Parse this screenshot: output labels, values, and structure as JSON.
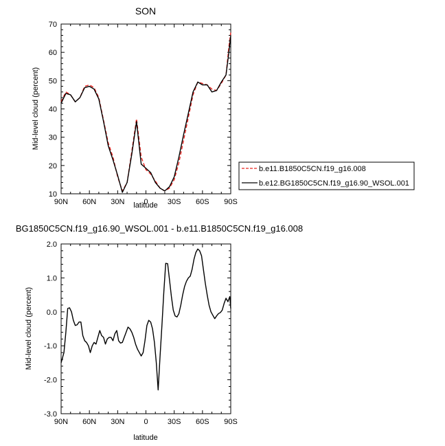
{
  "chart_data": [
    {
      "type": "line",
      "title": "SON",
      "xlabel": "latitude",
      "ylabel": "Mid-level cloud (percent)",
      "xlim": [
        90,
        -90
      ],
      "ylim": [
        10,
        70
      ],
      "x_ticks": [
        90,
        60,
        30,
        0,
        -30,
        -60,
        -90
      ],
      "x_tick_labels": [
        "90N",
        "60N",
        "30N",
        "0",
        "30S",
        "60S",
        "90S"
      ],
      "y_ticks": [
        10,
        20,
        30,
        40,
        50,
        60,
        70
      ],
      "y_tick_labels": [
        "10",
        "20",
        "30",
        "40",
        "50",
        "60",
        "70"
      ],
      "legend_position": "right",
      "x": [
        90,
        85,
        80,
        75,
        70,
        65,
        60,
        55,
        50,
        45,
        40,
        35,
        30,
        25,
        20,
        15,
        10,
        5,
        0,
        -5,
        -10,
        -15,
        -20,
        -25,
        -30,
        -35,
        -40,
        -45,
        -50,
        -55,
        -60,
        -65,
        -70,
        -75,
        -80,
        -85,
        -88,
        -90
      ],
      "series": [
        {
          "name": "b.e11.B1850C5CN.f19_g16.008",
          "color": "#e8231f",
          "dash": "dashed",
          "values": [
            42.5,
            46,
            45,
            42.5,
            44,
            48,
            48.5,
            47.5,
            44,
            36,
            28,
            23,
            16,
            11,
            14,
            25,
            36.5,
            23,
            18.5,
            17,
            14.5,
            12,
            11,
            12,
            15,
            21,
            29,
            37,
            45,
            49.5,
            49,
            48.5,
            47,
            46.5,
            49,
            52,
            62,
            67
          ]
        },
        {
          "name": "b.e12.BG1850C5CN.f19_g16.90_WSOL.001",
          "color": "#000000",
          "dash": "solid",
          "values": [
            42,
            45.5,
            45,
            42.5,
            44,
            47.5,
            48,
            47,
            43.5,
            35.5,
            27,
            22,
            16.5,
            10.5,
            14,
            24,
            35.5,
            20.5,
            19,
            17.5,
            14,
            12,
            11,
            12.5,
            16,
            23,
            31,
            38.5,
            46,
            49.5,
            48.5,
            48.5,
            46,
            46.5,
            49.5,
            52,
            60,
            66
          ]
        }
      ]
    },
    {
      "type": "line",
      "title": "BG1850C5CN.f19_g16.90_WSOL.001 - b.e11.B1850C5CN.f19_g16.008",
      "xlabel": "latitude",
      "ylabel": "Mid-level cloud (percent)",
      "xlim": [
        90,
        -90
      ],
      "ylim": [
        -3.0,
        2.0
      ],
      "x_ticks": [
        90,
        60,
        30,
        0,
        -30,
        -60,
        -90
      ],
      "x_tick_labels": [
        "90N",
        "60N",
        "30N",
        "0",
        "30S",
        "60S",
        "90S"
      ],
      "y_ticks": [
        -3.0,
        -2.0,
        -1.0,
        0.0,
        1.0,
        2.0
      ],
      "y_tick_labels": [
        "-3.0",
        "-2.0",
        "-1.0",
        "0.0",
        "1.0",
        "2.0"
      ],
      "x": [
        90,
        87,
        85,
        83,
        81,
        79,
        77,
        75,
        73,
        71,
        69,
        67,
        65,
        63,
        61,
        59,
        57,
        55,
        53,
        51,
        49,
        47,
        45,
        43,
        41,
        39,
        37,
        35,
        33,
        31,
        29,
        27,
        25,
        23,
        21,
        19,
        17,
        15,
        13,
        11,
        9,
        7,
        5,
        3,
        1,
        -1,
        -3,
        -5,
        -7,
        -9,
        -11,
        -13,
        -15,
        -17,
        -19,
        -21,
        -23,
        -25,
        -27,
        -29,
        -31,
        -33,
        -35,
        -37,
        -39,
        -41,
        -43,
        -45,
        -47,
        -49,
        -51,
        -53,
        -55,
        -57,
        -59,
        -61,
        -63,
        -65,
        -67,
        -69,
        -71,
        -73,
        -75,
        -77,
        -79,
        -81,
        -83,
        -85,
        -87,
        -89,
        -90
      ],
      "series": [
        {
          "name": "",
          "color": "#000000",
          "dash": "solid",
          "values": [
            -1.5,
            -1.2,
            -0.6,
            0.1,
            0.12,
            0.0,
            -0.25,
            -0.4,
            -0.38,
            -0.3,
            -0.3,
            -0.7,
            -0.85,
            -0.9,
            -1.0,
            -1.2,
            -1.0,
            -0.9,
            -0.95,
            -0.75,
            -0.55,
            -0.7,
            -0.75,
            -0.95,
            -0.8,
            -0.75,
            -0.75,
            -0.85,
            -0.65,
            -0.55,
            -0.85,
            -0.92,
            -0.9,
            -0.75,
            -0.6,
            -0.45,
            -0.5,
            -0.6,
            -0.75,
            -0.95,
            -1.1,
            -1.2,
            -1.3,
            -1.2,
            -0.85,
            -0.4,
            -0.25,
            -0.3,
            -0.5,
            -0.9,
            -1.5,
            -2.3,
            -1.3,
            -0.4,
            0.6,
            1.43,
            1.42,
            0.95,
            0.45,
            0.05,
            -0.12,
            -0.15,
            -0.05,
            0.2,
            0.5,
            0.75,
            0.9,
            1.0,
            1.05,
            1.25,
            1.55,
            1.75,
            1.85,
            1.8,
            1.65,
            1.25,
            0.85,
            0.5,
            0.2,
            0.0,
            -0.1,
            -0.2,
            -0.12,
            -0.05,
            -0.02,
            0.05,
            0.25,
            0.4,
            0.3,
            0.45,
            0.1
          ]
        }
      ]
    }
  ]
}
